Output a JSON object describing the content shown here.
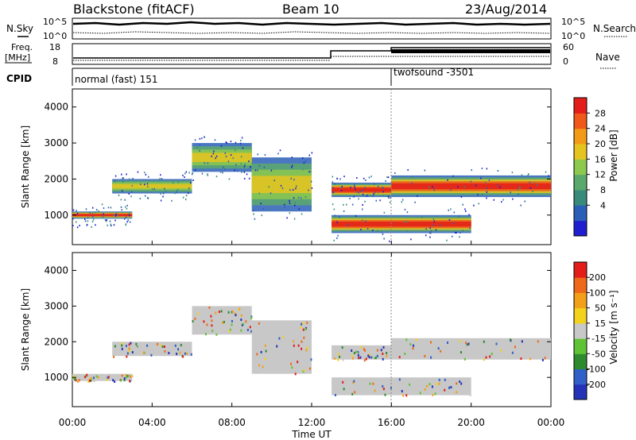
{
  "header": {
    "station": "Blackstone (fitACF)",
    "beam": "Beam 10",
    "date": "23/Aug/2014"
  },
  "top_panels": {
    "nsky_label": "N.Sky",
    "nsky_top_tick": "10^5",
    "nsky_bottom_tick": "10^0",
    "nsearch_label": "N.Search",
    "nsearch_top_tick": "10^5",
    "nsearch_bottom_tick": "10^0",
    "freq_label": "Freq.",
    "freq_unit": "[MHz]",
    "freq_top_tick": "18",
    "freq_bottom_tick": "8",
    "nave_label": "Nave",
    "nave_top_tick": "60",
    "nave_bottom_tick": "0",
    "cpid_label": "CPID",
    "cpid_segments": [
      {
        "label": "normal (fast) 151",
        "start_hour": 0,
        "end_hour": 16
      },
      {
        "label": "twofsound -3501",
        "start_hour": 16,
        "end_hour": 24
      }
    ]
  },
  "chart_data": [
    {
      "type": "heatmap",
      "panel": "power",
      "ylabel": "Slant Range [km]",
      "xlabel": "Time UT",
      "xlim": [
        0,
        24
      ],
      "ylim": [
        180,
        4500
      ],
      "yticks": [
        1000,
        2000,
        3000,
        4000
      ],
      "colorbar": {
        "label": "Power [dB]",
        "ticks": [
          "28",
          "24",
          "20",
          "16",
          "12",
          "8",
          "4"
        ],
        "colors": [
          "#1f1fd0",
          "#2b5fb7",
          "#3a8a7c",
          "#5aa86c",
          "#8dc84f",
          "#e6c41f",
          "#f39a19",
          "#f0591a",
          "#e31d1a"
        ]
      },
      "bands": [
        {
          "start_hour": 0.0,
          "end_hour": 3.0,
          "range_km": [
            900,
            1100
          ],
          "level": "strong"
        },
        {
          "start_hour": 2.0,
          "end_hour": 6.0,
          "range_km": [
            1600,
            2000
          ],
          "level": "medium"
        },
        {
          "start_hour": 6.0,
          "end_hour": 9.0,
          "range_km": [
            2200,
            3000
          ],
          "level": "medium"
        },
        {
          "start_hour": 9.0,
          "end_hour": 12.0,
          "range_km": [
            1100,
            2600
          ],
          "level": "medium"
        },
        {
          "start_hour": 13.0,
          "end_hour": 16.0,
          "range_km": [
            1500,
            1900
          ],
          "level": "strong"
        },
        {
          "start_hour": 13.0,
          "end_hour": 20.0,
          "range_km": [
            500,
            1000
          ],
          "level": "strong"
        },
        {
          "start_hour": 16.0,
          "end_hour": 24.0,
          "range_km": [
            1500,
            2100
          ],
          "level": "strong"
        }
      ]
    },
    {
      "type": "heatmap",
      "panel": "velocity",
      "ylabel": "Slant Range [km]",
      "xlabel": "Time UT",
      "xlim": [
        0,
        24
      ],
      "ylim": [
        180,
        4500
      ],
      "yticks": [
        1000,
        2000,
        3000,
        4000
      ],
      "colorbar": {
        "label": "Velocity [m s⁻¹]",
        "ticks": [
          "200",
          "100",
          "50",
          "15",
          "-15",
          "-50",
          "-100",
          "-200"
        ],
        "colors": [
          "#2432b8",
          "#3060c8",
          "#2e8a2e",
          "#5fc435",
          "#c8c8c8",
          "#f2d21b",
          "#f2a01a",
          "#ee6a1a",
          "#e31d1a"
        ]
      }
    }
  ],
  "x_axis": {
    "ticks": [
      "00:00",
      "04:00",
      "08:00",
      "12:00",
      "16:00",
      "20:00",
      "00:00"
    ],
    "label": "Time UT"
  },
  "colors": {
    "frame": "#000000",
    "ground_scatter": "#c8c8c8",
    "background": "#ffffff"
  }
}
